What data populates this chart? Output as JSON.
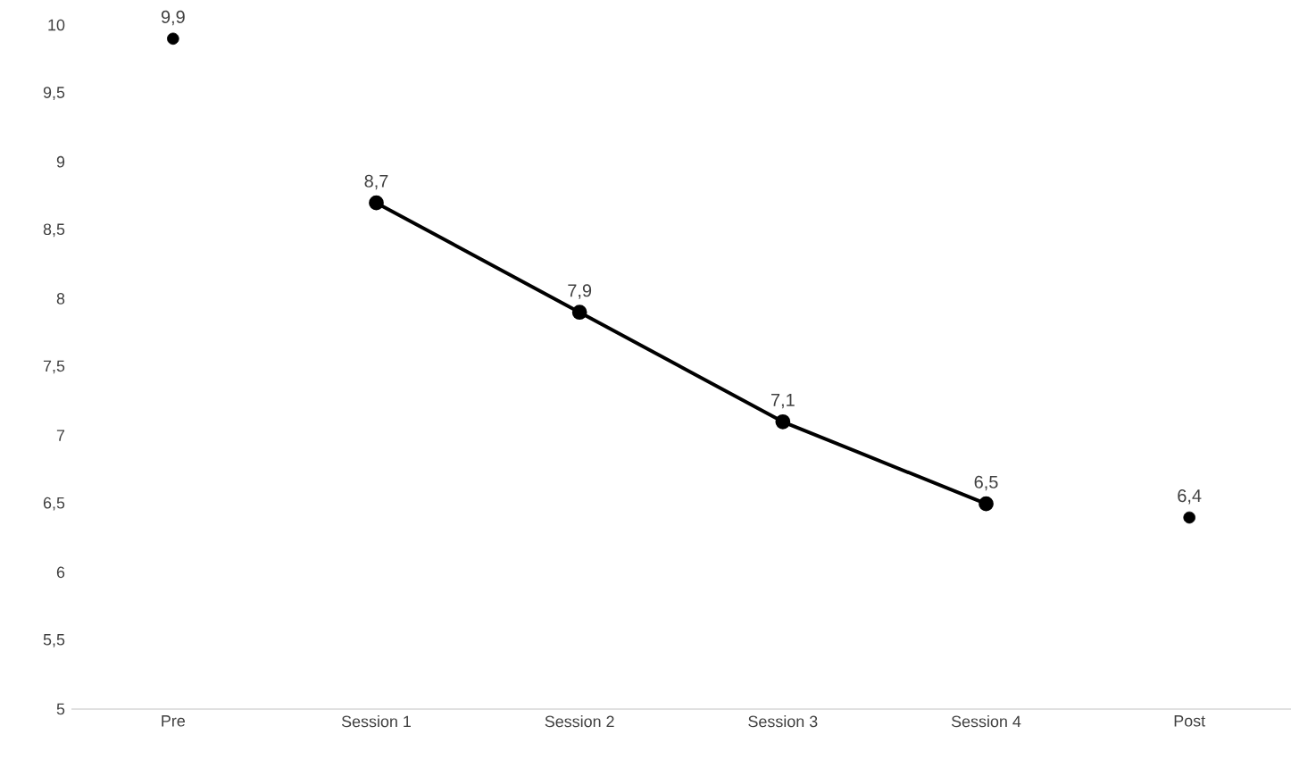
{
  "chart_data": {
    "type": "line",
    "categories": [
      "Pre",
      "Session 1",
      "Session 2",
      "Session 3",
      "Session 4",
      "Post"
    ],
    "series": [
      {
        "type": "scatter",
        "color": "#000000",
        "values": [
          9.9,
          null,
          null,
          null,
          null,
          6.4
        ],
        "value_labels": [
          "9,9",
          null,
          null,
          null,
          null,
          "6,4"
        ]
      },
      {
        "color": "#000000",
        "values": [
          null,
          8.7,
          7.9,
          7.1,
          6.5,
          null
        ],
        "value_labels": [
          null,
          "8,7",
          "7,9",
          "7,1",
          "6,5",
          null
        ]
      }
    ],
    "ylim": [
      5,
      10
    ],
    "yticks": [
      5,
      {
        "value": 5.5,
        "label": "5,5"
      },
      6,
      {
        "value": 6.5,
        "label": "6,5"
      },
      7,
      {
        "value": 7.5,
        "label": "7,5"
      },
      8,
      {
        "value": 8.5,
        "label": "8,5"
      },
      9,
      {
        "value": 9.5,
        "label": "9,5"
      },
      10
    ],
    "marker": "circle",
    "grid": false
  }
}
